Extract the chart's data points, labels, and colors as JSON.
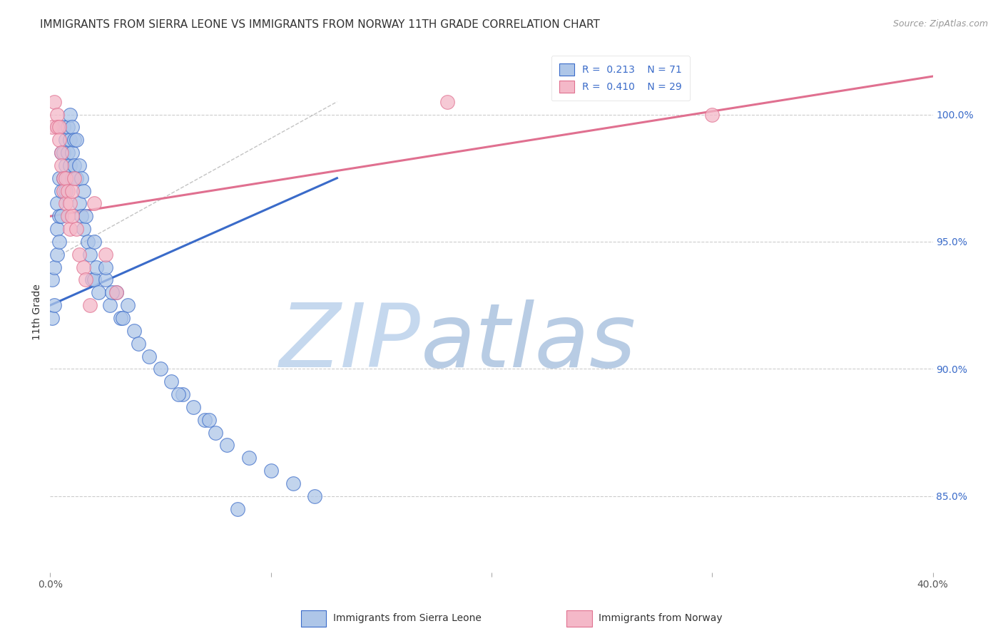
{
  "title": "IMMIGRANTS FROM SIERRA LEONE VS IMMIGRANTS FROM NORWAY 11TH GRADE CORRELATION CHART",
  "source": "Source: ZipAtlas.com",
  "ylabel": "11th Grade",
  "y_ticks": [
    85.0,
    90.0,
    95.0,
    100.0
  ],
  "y_tick_labels": [
    "85.0%",
    "90.0%",
    "95.0%",
    "100.0%"
  ],
  "x_range": [
    0.0,
    40.0
  ],
  "y_range": [
    82.0,
    102.5
  ],
  "blue_scatter_x": [
    0.1,
    0.1,
    0.2,
    0.2,
    0.3,
    0.3,
    0.3,
    0.4,
    0.4,
    0.4,
    0.5,
    0.5,
    0.5,
    0.6,
    0.6,
    0.6,
    0.7,
    0.7,
    0.7,
    0.8,
    0.8,
    0.8,
    0.9,
    0.9,
    0.9,
    1.0,
    1.0,
    1.0,
    1.1,
    1.1,
    1.2,
    1.2,
    1.3,
    1.3,
    1.4,
    1.4,
    1.5,
    1.5,
    1.6,
    1.7,
    1.8,
    1.9,
    2.0,
    2.0,
    2.1,
    2.2,
    2.5,
    2.7,
    3.0,
    3.2,
    3.5,
    3.8,
    4.0,
    4.5,
    5.0,
    5.5,
    6.0,
    6.5,
    7.0,
    7.5,
    8.0,
    9.0,
    10.0,
    11.0,
    12.0,
    2.5,
    2.8,
    3.3,
    5.8,
    7.2,
    8.5
  ],
  "blue_scatter_y": [
    93.5,
    92.0,
    94.0,
    92.5,
    96.5,
    95.5,
    94.5,
    97.5,
    96.0,
    95.0,
    98.5,
    97.0,
    96.0,
    99.5,
    98.5,
    97.5,
    99.0,
    98.0,
    97.0,
    99.5,
    98.5,
    97.5,
    100.0,
    99.0,
    98.0,
    99.5,
    98.5,
    97.5,
    99.0,
    98.0,
    99.0,
    97.5,
    98.0,
    96.5,
    97.5,
    96.0,
    97.0,
    95.5,
    96.0,
    95.0,
    94.5,
    93.5,
    95.0,
    93.5,
    94.0,
    93.0,
    93.5,
    92.5,
    93.0,
    92.0,
    92.5,
    91.5,
    91.0,
    90.5,
    90.0,
    89.5,
    89.0,
    88.5,
    88.0,
    87.5,
    87.0,
    86.5,
    86.0,
    85.5,
    85.0,
    94.0,
    93.0,
    92.0,
    89.0,
    88.0,
    84.5
  ],
  "pink_scatter_x": [
    0.1,
    0.2,
    0.3,
    0.3,
    0.4,
    0.4,
    0.5,
    0.5,
    0.6,
    0.6,
    0.7,
    0.7,
    0.8,
    0.8,
    0.9,
    0.9,
    1.0,
    1.0,
    1.1,
    1.2,
    1.3,
    1.5,
    1.6,
    1.8,
    2.0,
    2.5,
    3.0,
    18.0,
    30.0
  ],
  "pink_scatter_y": [
    99.5,
    100.5,
    100.0,
    99.5,
    99.5,
    99.0,
    98.5,
    98.0,
    97.5,
    97.0,
    97.5,
    96.5,
    97.0,
    96.0,
    96.5,
    95.5,
    97.0,
    96.0,
    97.5,
    95.5,
    94.5,
    94.0,
    93.5,
    92.5,
    96.5,
    94.5,
    93.0,
    100.5,
    100.0
  ],
  "blue_line_x": [
    0.0,
    13.0
  ],
  "blue_line_y": [
    92.5,
    97.5
  ],
  "pink_line_x": [
    0.0,
    40.0
  ],
  "pink_line_y": [
    96.0,
    101.5
  ],
  "dash_line_x": [
    0.5,
    13.0
  ],
  "dash_line_y": [
    94.5,
    100.5
  ],
  "blue_scatter_color": "#aec6e8",
  "pink_scatter_color": "#f4b8c8",
  "blue_line_color": "#3a6bc9",
  "pink_line_color": "#e07090",
  "dash_line_color": "#aaaaaa",
  "watermark_zip_color": "#c8d8ee",
  "watermark_atlas_color": "#b0c8e8",
  "background_color": "#ffffff",
  "grid_color": "#cccccc",
  "title_fontsize": 11,
  "axis_label_fontsize": 10,
  "tick_fontsize": 10,
  "legend_fontsize": 10,
  "right_axis_color": "#3a6bc9",
  "source_color": "#999999"
}
